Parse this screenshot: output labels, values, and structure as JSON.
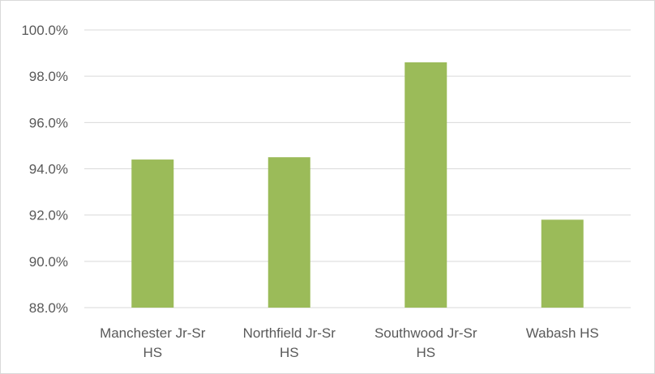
{
  "chart_data": {
    "type": "bar",
    "categories": [
      [
        "Manchester Jr-Sr",
        "HS"
      ],
      [
        "Northfield Jr-Sr",
        "HS"
      ],
      [
        "Southwood Jr-Sr",
        "HS"
      ],
      [
        "Wabash HS"
      ]
    ],
    "values": [
      94.4,
      94.5,
      98.6,
      91.8
    ],
    "y_ticks": [
      "88.0%",
      "90.0%",
      "92.0%",
      "94.0%",
      "96.0%",
      "98.0%",
      "100.0%"
    ],
    "ylim": [
      88,
      100
    ],
    "grid": true,
    "legend": "none",
    "bar_color": "#9bbb59",
    "grid_color": "#d9d9d9",
    "title": "",
    "xlabel": "",
    "ylabel": ""
  }
}
